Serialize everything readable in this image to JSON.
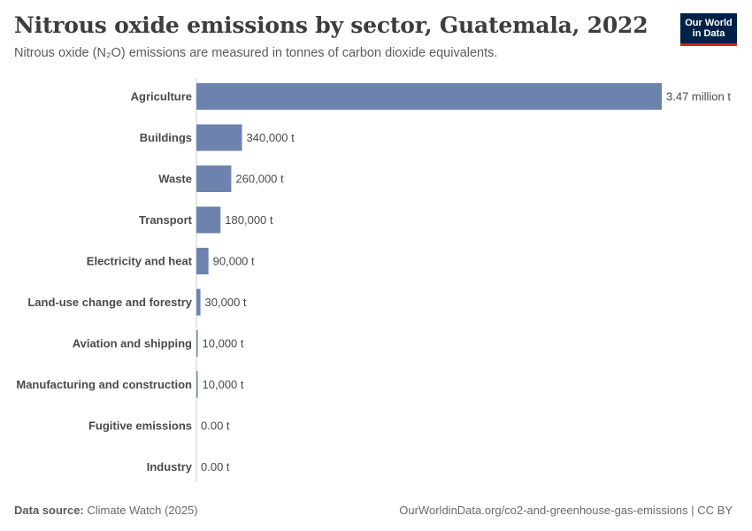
{
  "header": {
    "title": "Nitrous oxide emissions by sector, Guatemala, 2022",
    "subtitle": "Nitrous oxide (N₂O) emissions are measured in tonnes of carbon dioxide equivalents."
  },
  "logo": {
    "line1": "Our World",
    "line2": "in Data"
  },
  "footer": {
    "source_label": "Data source:",
    "source_value": "Climate Watch (2025)",
    "url": "OurWorldinData.org/co2-and-greenhouse-gas-emissions | CC BY"
  },
  "colors": {
    "bar": "#6d83ad",
    "axis": "#cccccc"
  },
  "chart_data": {
    "type": "bar",
    "orientation": "horizontal",
    "title": "Nitrous oxide emissions by sector, Guatemala, 2022",
    "unit": "tonnes of CO2 equivalents",
    "categories": [
      "Agriculture",
      "Buildings",
      "Waste",
      "Transport",
      "Electricity and heat",
      "Land-use change and forestry",
      "Aviation and shipping",
      "Manufacturing and construction",
      "Fugitive emissions",
      "Industry"
    ],
    "values": [
      3470000,
      340000,
      260000,
      180000,
      90000,
      30000,
      10000,
      10000,
      0,
      0
    ],
    "value_labels": [
      "3.47 million t",
      "340,000 t",
      "260,000 t",
      "180,000 t",
      "90,000 t",
      "30,000 t",
      "10,000 t",
      "10,000 t",
      "0.00 t",
      "0.00 t"
    ],
    "xlim": [
      0,
      3470000
    ]
  }
}
